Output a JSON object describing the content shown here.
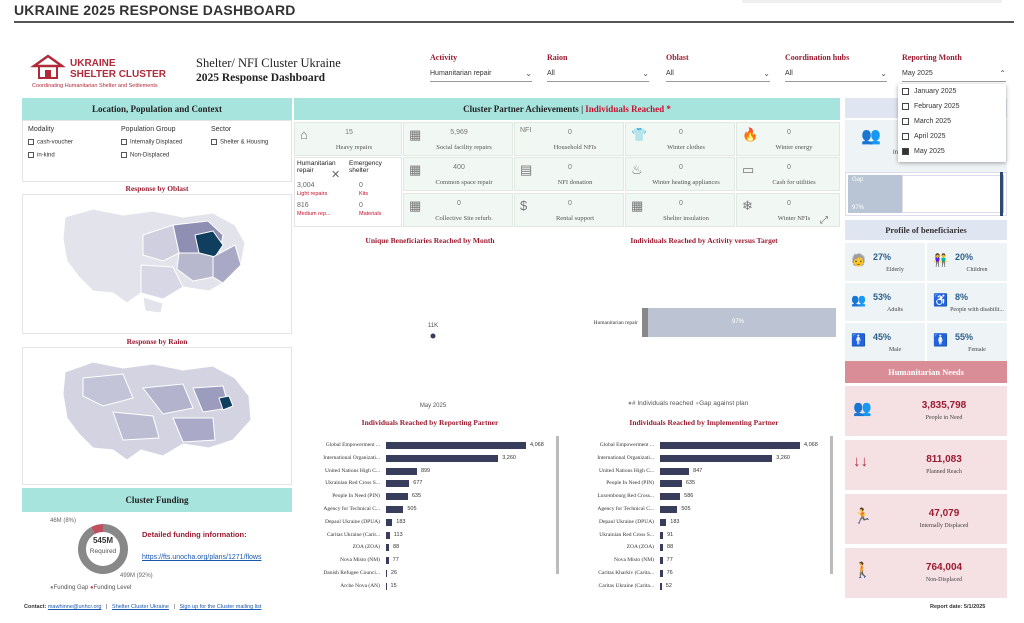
{
  "page_title": "UKRAINE 2025 RESPONSE DASHBOARD",
  "logo": {
    "line1": "UKRAINE",
    "line2": "SHELTER CLUSTER",
    "tagline": "Coordinating Humanitarian Shelter and Settlements"
  },
  "header": {
    "title": "Shelter/ NFI Cluster Ukraine",
    "subtitle": "2025 Response Dashboard"
  },
  "filters": [
    {
      "label": "Activity",
      "value": "Humanitarian repair"
    },
    {
      "label": "Raion",
      "value": "All"
    },
    {
      "label": "Oblast",
      "value": "All"
    },
    {
      "label": "Coordination hubs",
      "value": "All"
    },
    {
      "label": "Reporting Month",
      "value": "May 2025"
    }
  ],
  "month_dropdown": [
    {
      "label": "January 2025",
      "checked": false
    },
    {
      "label": "February 2025",
      "checked": false
    },
    {
      "label": "March 2025",
      "checked": false
    },
    {
      "label": "April 2025",
      "checked": false
    },
    {
      "label": "May 2025",
      "checked": true
    }
  ],
  "left_panel": {
    "title": "Location, Population and Context",
    "modality": {
      "label": "Modality",
      "options": [
        "cash-voucher",
        "in-kind"
      ]
    },
    "population": {
      "label": "Population Group",
      "options": [
        "Internally Displaced",
        "Non-Displaced"
      ]
    },
    "sector": {
      "label": "Sector",
      "options": [
        "Shelter & Housing"
      ]
    },
    "oblast_title": "Response by Oblast",
    "raion_title": "Response by Raion"
  },
  "funding": {
    "title": "Cluster Funding",
    "top_label": "46M (8%)",
    "center_value": "545M",
    "center_label": "Required",
    "bottom_label": "499M (92%)",
    "detail_title": "Detailed funding information:",
    "link": "https://fts.unocha.org/plans/1271/flows",
    "legend": [
      "Funding Gap",
      "Funding Level"
    ],
    "gap_color": "#888888",
    "level_color": "#c0505f"
  },
  "achievements": {
    "title_black": "Cluster Partner Achievements |",
    "title_red": "Individuals Reached *",
    "cards": [
      {
        "icon": "house-repair-icon",
        "glyph": "⌂",
        "value": "15",
        "label": "Heavy repairs"
      },
      {
        "icon": "building-icon",
        "glyph": "▦",
        "value": "5,969",
        "label": "Social facility repairs"
      },
      {
        "icon": "nfi-icon",
        "glyph": "NFI",
        "value": "0",
        "label": "Household NFIs"
      },
      {
        "icon": "shirt-icon",
        "glyph": "👕",
        "value": "0",
        "label": "Winter clothes"
      },
      {
        "icon": "flame-icon",
        "glyph": "🔥",
        "value": "0",
        "label": "Winter energy"
      },
      {
        "icon": "common-space-icon",
        "glyph": "▦",
        "value": "400",
        "label": "Common space repair"
      },
      {
        "icon": "nfi-donation-icon",
        "glyph": "▤",
        "value": "0",
        "label": "NFI donation"
      },
      {
        "icon": "heating-appliance-icon",
        "glyph": "♨",
        "value": "0",
        "label": "Winter heating appliances"
      },
      {
        "icon": "cash-icon",
        "glyph": "▭",
        "value": "0",
        "label": "Cash for utilities"
      },
      {
        "icon": "collective-site-icon",
        "glyph": "▦",
        "value": "0",
        "label": "Collective Site refurb."
      },
      {
        "icon": "rental-icon",
        "glyph": "$",
        "value": "0",
        "label": "Rental support"
      },
      {
        "icon": "insulation-icon",
        "glyph": "▦",
        "value": "0",
        "label": "Shelter insulation"
      },
      {
        "icon": "snowflake-icon",
        "glyph": "❄",
        "value": "0",
        "label": "Winter NFIs"
      }
    ],
    "humanitarian_repair": {
      "title1": "Humanitarian",
      "title2": "repair",
      "v1": "3,004",
      "l1": "Light repairs",
      "v2": "816",
      "l2": "Medium rep..."
    },
    "emergency_shelter": {
      "title1": "Emergency",
      "title2": "shelter",
      "v1": "0",
      "l1": "Kits",
      "v2": "0",
      "l2": "Materials"
    }
  },
  "monthly_chart": {
    "title": "Unique Beneficiaries Reached by Month",
    "chart_data": {
      "type": "scatter",
      "categories": [
        "May 2025"
      ],
      "values": [
        11000
      ],
      "data_labels": [
        "11K"
      ]
    }
  },
  "activity_chart": {
    "title": "Individuals Reached by Activity versus Target",
    "chart_data": {
      "type": "bar",
      "categories": [
        "Humanitarian repair"
      ],
      "series": [
        {
          "name": "# Individuals reached",
          "values": [
            3
          ]
        },
        {
          "name": "Gap against plan",
          "values": [
            97
          ]
        }
      ],
      "bar_label": "97%",
      "legend": [
        "# Individuals reached",
        "Gap against plan"
      ]
    }
  },
  "reporting_chart": {
    "title": "Individuals Reached by Reporting Partner",
    "chart_data": {
      "type": "bar",
      "categories": [
        "Global Empowerment ...",
        "International Organizati...",
        "United Nations High C...",
        "Ukrainian Red Cross S...",
        "People In Need (PIN)",
        "Agency for Technical C...",
        "Depaul Ukraine (DPUA)",
        "Caritas Ukraine (Carit...",
        "ZOA (ZOA)",
        "Nova Misto (NM)",
        "Danish Refugee Counci...",
        "Arche Nova (AN)"
      ],
      "values": [
        4068,
        3260,
        899,
        677,
        635,
        505,
        183,
        113,
        88,
        77,
        26,
        15
      ],
      "value_labels": [
        "4,068",
        "3,260",
        "899",
        "677",
        "635",
        "505",
        "183",
        "113",
        "88",
        "77",
        "26",
        "15"
      ]
    }
  },
  "implementing_chart": {
    "title": "Individuals Reached by Implementing Partner",
    "chart_data": {
      "type": "bar",
      "categories": [
        "Global Empowerment ...",
        "International Organizati...",
        "United Nations High C...",
        "People In Need (PIN)",
        "Luxembourg Red Cross...",
        "Agency for Technical C...",
        "Depaul Ukraine (DPUA)",
        "Ukrainian Red Cross S...",
        "ZOA (ZOA)",
        "Nova Misto (NM)",
        "Caritas Kharkiv (Carita...",
        "Caritas Ukraine (Carita..."
      ],
      "values": [
        4068,
        3260,
        847,
        635,
        586,
        505,
        183,
        91,
        88,
        77,
        76,
        52
      ],
      "value_labels": [
        "4,068",
        "3,260",
        "847",
        "635",
        "586",
        "505",
        "183",
        "91",
        "88",
        "77",
        "76",
        "52"
      ]
    }
  },
  "gap_panel": {
    "label_left": "In",
    "gap_label": "Gap",
    "gap_value": "97%"
  },
  "profile": {
    "title": "Profile of beneficiaries",
    "items": [
      {
        "icon": "elderly-icon",
        "value": "27%",
        "label": "Elderly"
      },
      {
        "icon": "children-icon",
        "value": "20%",
        "label": "Children"
      },
      {
        "icon": "adults-icon",
        "value": "53%",
        "label": "Adults"
      },
      {
        "icon": "disability-icon",
        "value": "8%",
        "label": "People with disabilit..."
      },
      {
        "icon": "male-icon",
        "value": "45%",
        "label": "Male"
      },
      {
        "icon": "female-icon",
        "value": "55%",
        "label": "Female"
      }
    ]
  },
  "needs": {
    "title": "Humanitarian Needs",
    "items": [
      {
        "icon": "people-in-need-icon",
        "value": "3,835,798",
        "label": "People in Need"
      },
      {
        "icon": "planned-reach-icon",
        "value": "811,083",
        "label": "Planned Reach"
      },
      {
        "icon": "displaced-icon",
        "value": "47,079",
        "label": "Internally Displaced"
      },
      {
        "icon": "non-displaced-icon",
        "value": "764,004",
        "label": "Non-Displaced"
      }
    ]
  },
  "footer": {
    "contact_label": "Contact:",
    "contact_email": "mawhinne@unhcr.org",
    "link1": "Shelter Cluster Ukraine",
    "link2": "Sign up for the Cluster mailing list",
    "report_date": "Report date: 5/1/2025"
  },
  "colors": {
    "accent_red": "#9b1b30",
    "panel_teal": "#a8e4de",
    "bar_navy": "#383d5c",
    "map_dark": "#0f3e5e"
  }
}
